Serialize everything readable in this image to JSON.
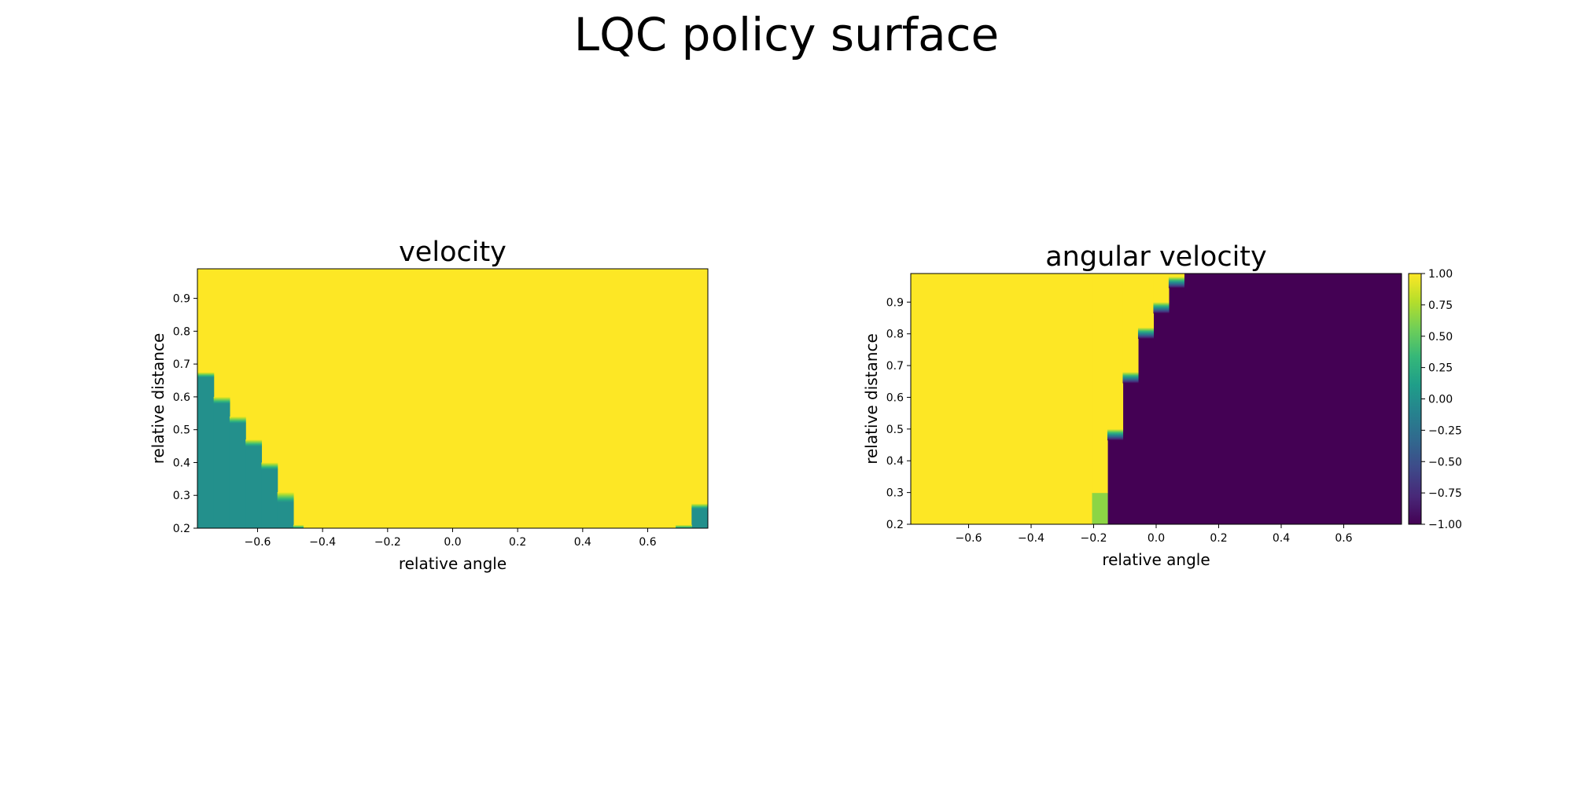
{
  "figure": {
    "title": "LQC policy surface"
  },
  "chart_data": [
    {
      "type": "heatmap",
      "title": "velocity",
      "xlabel": "relative angle",
      "ylabel": "relative distance",
      "xlim": [
        -0.785,
        0.785
      ],
      "ylim": [
        0.2,
        0.99
      ],
      "xticks": [
        -0.6,
        -0.4,
        -0.2,
        0.0,
        0.2,
        0.4,
        0.6
      ],
      "xtick_labels": [
        "−0.6",
        "−0.4",
        "−0.2",
        "0.0",
        "0.2",
        "0.4",
        "0.6"
      ],
      "yticks": [
        0.2,
        0.3,
        0.4,
        0.5,
        0.6,
        0.7,
        0.8,
        0.9
      ],
      "ytick_labels": [
        "0.2",
        "0.3",
        "0.4",
        "0.5",
        "0.6",
        "0.7",
        "0.8",
        "0.9"
      ],
      "colormap": "viridis",
      "vlim": [
        -1.0,
        1.0
      ],
      "background_value": 1.0,
      "regions": [
        {
          "x": [
            -0.785,
            -0.735
          ],
          "y": [
            0.2,
            0.66
          ],
          "value": 0.0
        },
        {
          "x": [
            -0.735,
            -0.686
          ],
          "y": [
            0.2,
            0.58
          ],
          "value": 0.0
        },
        {
          "x": [
            -0.686,
            -0.637
          ],
          "y": [
            0.2,
            0.52
          ],
          "value": 0.0
        },
        {
          "x": [
            -0.637,
            -0.588
          ],
          "y": [
            0.2,
            0.45
          ],
          "value": 0.0
        },
        {
          "x": [
            -0.588,
            -0.539
          ],
          "y": [
            0.2,
            0.38
          ],
          "value": 0.0
        },
        {
          "x": [
            -0.539,
            -0.49
          ],
          "y": [
            0.2,
            0.28
          ],
          "value": 0.0
        },
        {
          "x": [
            0.735,
            0.785
          ],
          "y": [
            0.2,
            0.26
          ],
          "value": 0.0
        }
      ],
      "transitions": [
        {
          "x": [
            -0.785,
            -0.735
          ],
          "y": [
            0.66,
            0.675
          ]
        },
        {
          "x": [
            -0.735,
            -0.686
          ],
          "y": [
            0.58,
            0.6
          ]
        },
        {
          "x": [
            -0.686,
            -0.637
          ],
          "y": [
            0.52,
            0.54
          ]
        },
        {
          "x": [
            -0.637,
            -0.588
          ],
          "y": [
            0.45,
            0.47
          ]
        },
        {
          "x": [
            -0.588,
            -0.539
          ],
          "y": [
            0.38,
            0.4
          ]
        },
        {
          "x": [
            -0.539,
            -0.49
          ],
          "y": [
            0.28,
            0.31
          ]
        },
        {
          "x": [
            -0.49,
            -0.46
          ],
          "y": [
            0.2,
            0.21
          ]
        },
        {
          "x": [
            0.686,
            0.735
          ],
          "y": [
            0.2,
            0.21
          ]
        },
        {
          "x": [
            0.735,
            0.785
          ],
          "y": [
            0.26,
            0.275
          ]
        }
      ]
    },
    {
      "type": "heatmap",
      "title": "angular velocity",
      "xlabel": "relative angle",
      "ylabel": "relative distance",
      "xlim": [
        -0.785,
        0.785
      ],
      "ylim": [
        0.2,
        0.99
      ],
      "xticks": [
        -0.6,
        -0.4,
        -0.2,
        0.0,
        0.2,
        0.4,
        0.6
      ],
      "xtick_labels": [
        "−0.6",
        "−0.4",
        "−0.2",
        "0.0",
        "0.2",
        "0.4",
        "0.6"
      ],
      "yticks": [
        0.2,
        0.3,
        0.4,
        0.5,
        0.6,
        0.7,
        0.8,
        0.9
      ],
      "ytick_labels": [
        "0.2",
        "0.3",
        "0.4",
        "0.5",
        "0.6",
        "0.7",
        "0.8",
        "0.9"
      ],
      "colormap": "viridis",
      "vlim": [
        -1.0,
        1.0
      ],
      "background_value": -1.0,
      "regions": [
        {
          "x": [
            -0.785,
            -0.205
          ],
          "y": [
            0.2,
            0.99
          ],
          "value": 1.0
        },
        {
          "x": [
            -0.205,
            -0.156
          ],
          "y": [
            0.2,
            0.3
          ],
          "value": 0.65
        },
        {
          "x": [
            -0.205,
            -0.156
          ],
          "y": [
            0.3,
            0.99
          ],
          "value": 1.0
        },
        {
          "x": [
            -0.156,
            -0.107
          ],
          "y": [
            0.5,
            0.99
          ],
          "value": 1.0
        },
        {
          "x": [
            -0.107,
            -0.058
          ],
          "y": [
            0.68,
            0.99
          ],
          "value": 1.0
        },
        {
          "x": [
            -0.058,
            -0.009
          ],
          "y": [
            0.82,
            0.99
          ],
          "value": 1.0
        },
        {
          "x": [
            -0.009,
            0.04
          ],
          "y": [
            0.9,
            0.99
          ],
          "value": 1.0
        },
        {
          "x": [
            0.04,
            0.089
          ],
          "y": [
            0.98,
            0.99
          ],
          "value": 1.0
        }
      ],
      "transitions": [
        {
          "x": [
            -0.156,
            -0.107
          ],
          "y": [
            0.465,
            0.5
          ]
        },
        {
          "x": [
            -0.107,
            -0.058
          ],
          "y": [
            0.645,
            0.68
          ]
        },
        {
          "x": [
            -0.058,
            -0.009
          ],
          "y": [
            0.785,
            0.82
          ]
        },
        {
          "x": [
            -0.009,
            0.04
          ],
          "y": [
            0.865,
            0.9
          ]
        },
        {
          "x": [
            0.04,
            0.089
          ],
          "y": [
            0.945,
            0.98
          ]
        }
      ],
      "colorbar": {
        "ticks": [
          1.0,
          0.75,
          0.5,
          0.25,
          0.0,
          -0.25,
          -0.5,
          -0.75,
          -1.0
        ],
        "tick_labels": [
          "1.00",
          "0.75",
          "0.50",
          "0.25",
          "0.00",
          "−0.25",
          "−0.50",
          "−0.75",
          "−1.00"
        ]
      }
    }
  ]
}
